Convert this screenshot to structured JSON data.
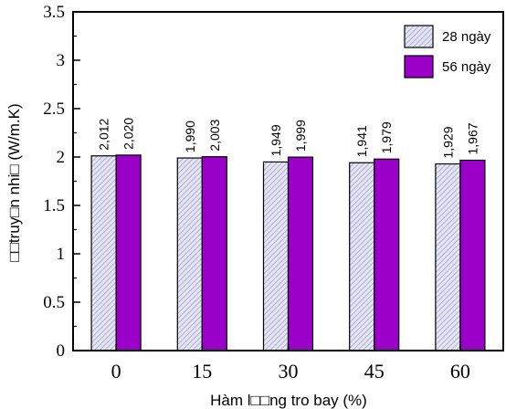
{
  "chart_data": {
    "type": "bar",
    "categories": [
      "0",
      "15",
      "30",
      "45",
      "60"
    ],
    "series": [
      {
        "name": "28 ngày",
        "values": [
          2.012,
          1.99,
          1.949,
          1.941,
          1.929
        ],
        "labels": [
          "2,012",
          "1,990",
          "1,949",
          "1,941",
          "1,929"
        ],
        "pattern": "diagonal-hatch",
        "color": "#b9b9dc"
      },
      {
        "name": "56 ngày",
        "values": [
          2.02,
          2.003,
          1.999,
          1.979,
          1.967
        ],
        "labels": [
          "2,020",
          "2,003",
          "1,999",
          "1,979",
          "1,967"
        ],
        "color": "#9a00c8"
      }
    ],
    "xlabel": "Hàm l□□ng tro bay (%)",
    "ylabel": "□□truy□n nhi□ (W/m.K)",
    "ylim": [
      0,
      3.5
    ],
    "yticks": [
      "0",
      "0.5",
      "1",
      "1.5",
      "2",
      "2.5",
      "3",
      "3.5"
    ],
    "legend_position": "top-right",
    "grid": false
  }
}
